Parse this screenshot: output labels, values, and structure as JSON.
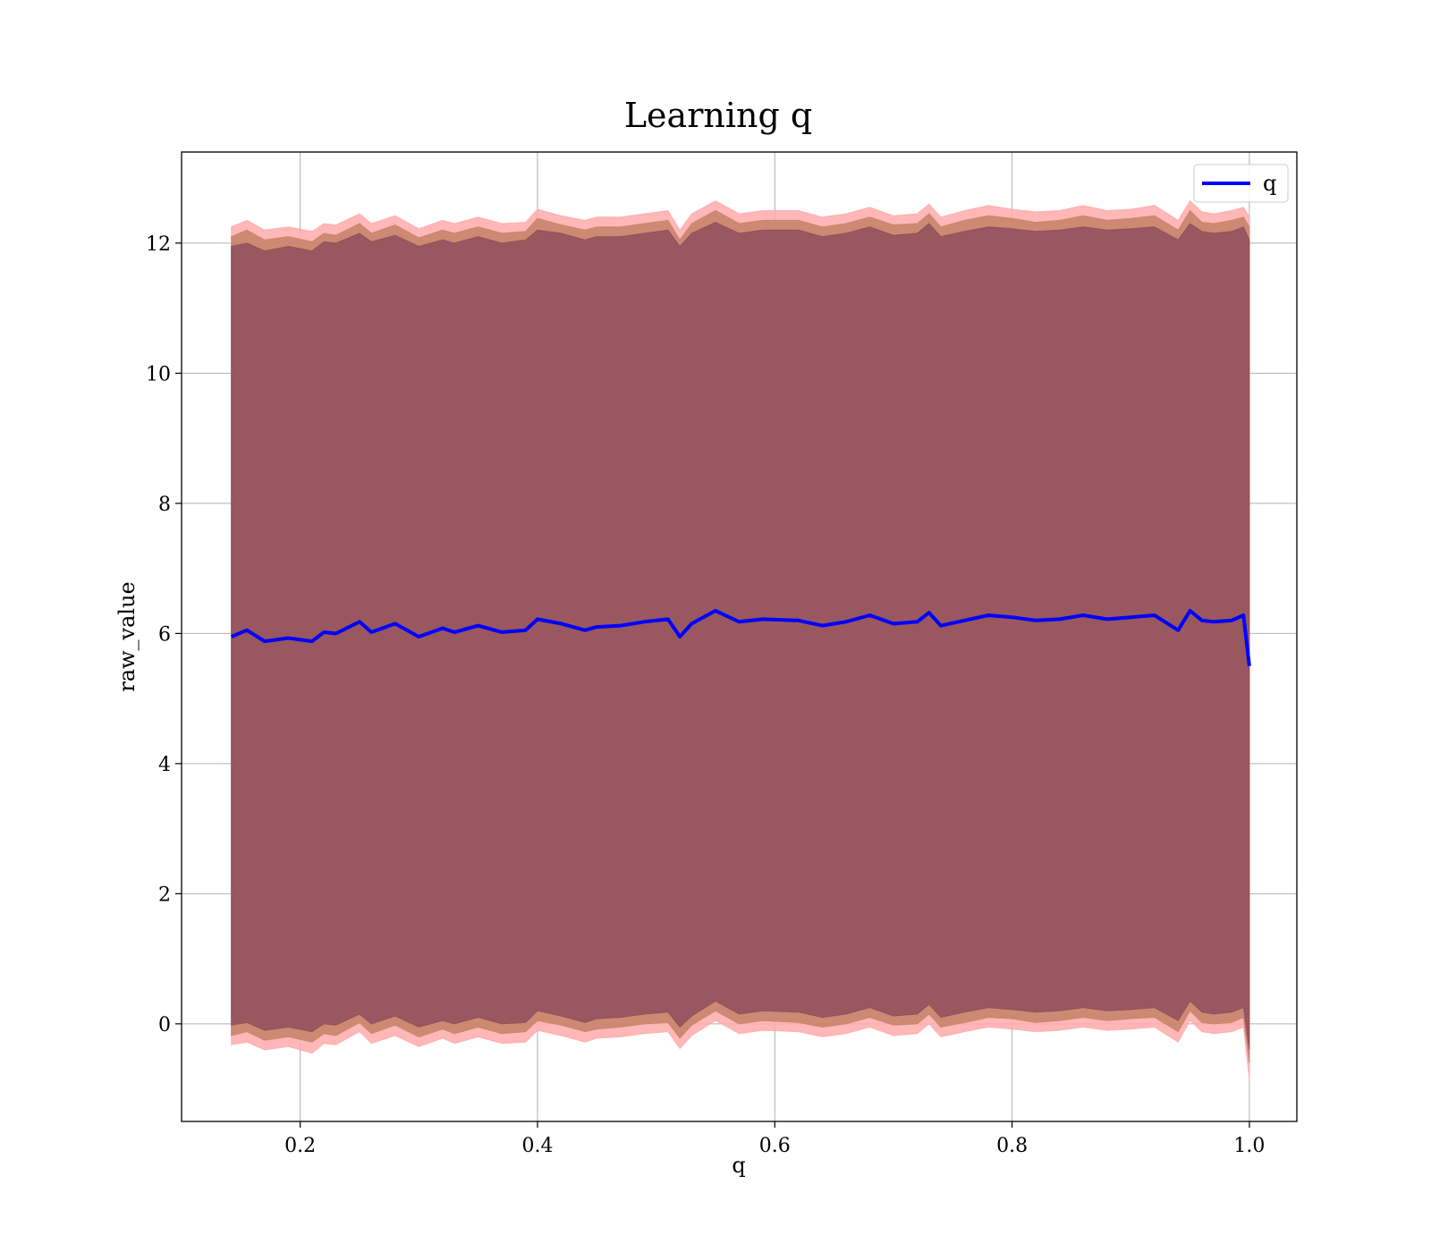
{
  "chart_data": {
    "type": "line",
    "title": "Learning q",
    "xlabel": "q",
    "ylabel": "raw_value",
    "xlim": [
      0.1,
      1.04
    ],
    "ylim": [
      -1.5,
      13.4
    ],
    "grid": true,
    "x_ticks": [
      0.2,
      0.4,
      0.6,
      0.8,
      1.0
    ],
    "x_tick_labels": [
      "0.2",
      "0.4",
      "0.6",
      "0.8",
      "1.0"
    ],
    "y_ticks": [
      0,
      2,
      4,
      6,
      8,
      10,
      12
    ],
    "y_tick_labels": [
      "0",
      "2",
      "4",
      "6",
      "8",
      "10",
      "12"
    ],
    "legend": {
      "entries": [
        "q"
      ],
      "placement": "top-right"
    },
    "colors": {
      "line": "#0000ff",
      "inner_band": "#8b4a5a",
      "middle_band": "#c9846b",
      "outer_band": "#ffaaaa"
    },
    "series": [
      {
        "name": "q",
        "x": [
          0.142,
          0.155,
          0.17,
          0.19,
          0.21,
          0.22,
          0.23,
          0.25,
          0.26,
          0.28,
          0.3,
          0.32,
          0.33,
          0.35,
          0.37,
          0.39,
          0.4,
          0.42,
          0.44,
          0.45,
          0.47,
          0.49,
          0.51,
          0.52,
          0.53,
          0.55,
          0.57,
          0.59,
          0.62,
          0.64,
          0.66,
          0.68,
          0.7,
          0.72,
          0.73,
          0.74,
          0.76,
          0.78,
          0.8,
          0.82,
          0.84,
          0.86,
          0.88,
          0.9,
          0.92,
          0.94,
          0.95,
          0.96,
          0.97,
          0.985,
          0.995,
          1.0
        ],
        "y": [
          5.95,
          6.05,
          5.88,
          5.93,
          5.88,
          6.02,
          6.0,
          6.18,
          6.02,
          6.15,
          5.95,
          6.08,
          6.02,
          6.12,
          6.02,
          6.05,
          6.22,
          6.15,
          6.05,
          6.1,
          6.12,
          6.18,
          6.22,
          5.95,
          6.15,
          6.35,
          6.18,
          6.22,
          6.2,
          6.12,
          6.18,
          6.28,
          6.15,
          6.18,
          6.32,
          6.12,
          6.2,
          6.28,
          6.25,
          6.2,
          6.22,
          6.28,
          6.22,
          6.25,
          6.28,
          6.05,
          6.35,
          6.2,
          6.18,
          6.2,
          6.28,
          5.5
        ],
        "inner_upper": [
          11.95,
          12.0,
          11.88,
          11.95,
          11.88,
          12.02,
          12.0,
          12.15,
          12.02,
          12.12,
          11.95,
          12.05,
          12.0,
          12.1,
          12.0,
          12.05,
          12.2,
          12.15,
          12.05,
          12.1,
          12.1,
          12.15,
          12.2,
          11.95,
          12.15,
          12.32,
          12.15,
          12.2,
          12.2,
          12.1,
          12.15,
          12.25,
          12.12,
          12.15,
          12.3,
          12.1,
          12.18,
          12.25,
          12.22,
          12.18,
          12.2,
          12.25,
          12.2,
          12.22,
          12.25,
          12.05,
          12.3,
          12.18,
          12.15,
          12.18,
          12.25,
          12.05
        ],
        "inner_lower": [
          -0.02,
          0.02,
          -0.1,
          -0.05,
          -0.12,
          0.0,
          -0.02,
          0.15,
          0.0,
          0.12,
          -0.05,
          0.05,
          0.0,
          0.1,
          0.0,
          0.02,
          0.2,
          0.12,
          0.02,
          0.08,
          0.1,
          0.15,
          0.18,
          -0.05,
          0.12,
          0.35,
          0.15,
          0.2,
          0.18,
          0.1,
          0.15,
          0.25,
          0.12,
          0.15,
          0.3,
          0.1,
          0.18,
          0.25,
          0.22,
          0.18,
          0.2,
          0.25,
          0.2,
          0.22,
          0.25,
          0.05,
          0.35,
          0.18,
          0.15,
          0.18,
          0.25,
          -0.4
        ],
        "middle_upper": [
          12.1,
          12.2,
          12.05,
          12.1,
          12.02,
          12.15,
          12.12,
          12.3,
          12.15,
          12.28,
          12.08,
          12.2,
          12.15,
          12.25,
          12.15,
          12.18,
          12.38,
          12.28,
          12.2,
          12.25,
          12.25,
          12.3,
          12.35,
          12.05,
          12.3,
          12.5,
          12.3,
          12.35,
          12.35,
          12.25,
          12.3,
          12.4,
          12.28,
          12.3,
          12.45,
          12.25,
          12.35,
          12.42,
          12.38,
          12.32,
          12.35,
          12.42,
          12.35,
          12.38,
          12.42,
          12.2,
          12.5,
          12.32,
          12.3,
          12.35,
          12.4,
          12.25
        ],
        "middle_lower": [
          -0.18,
          -0.12,
          -0.25,
          -0.2,
          -0.28,
          -0.15,
          -0.18,
          0.02,
          -0.15,
          -0.02,
          -0.2,
          -0.08,
          -0.15,
          -0.05,
          -0.15,
          -0.12,
          0.05,
          -0.02,
          -0.12,
          -0.08,
          -0.05,
          0.0,
          0.02,
          -0.22,
          -0.02,
          0.2,
          0.0,
          0.05,
          0.02,
          -0.05,
          0.0,
          0.1,
          -0.02,
          0.0,
          0.15,
          -0.05,
          0.02,
          0.1,
          0.08,
          0.02,
          0.05,
          0.1,
          0.05,
          0.08,
          0.1,
          -0.12,
          0.2,
          0.02,
          0.0,
          0.02,
          0.1,
          -0.6
        ],
        "outer_upper": [
          12.25,
          12.35,
          12.2,
          12.25,
          12.18,
          12.3,
          12.28,
          12.45,
          12.3,
          12.42,
          12.22,
          12.35,
          12.3,
          12.4,
          12.3,
          12.32,
          12.52,
          12.42,
          12.35,
          12.4,
          12.4,
          12.45,
          12.5,
          12.2,
          12.45,
          12.65,
          12.45,
          12.5,
          12.5,
          12.4,
          12.45,
          12.55,
          12.42,
          12.45,
          12.6,
          12.4,
          12.5,
          12.58,
          12.52,
          12.48,
          12.5,
          12.58,
          12.5,
          12.52,
          12.58,
          12.35,
          12.65,
          12.48,
          12.45,
          12.5,
          12.55,
          12.4
        ],
        "outer_lower": [
          -0.32,
          -0.28,
          -0.4,
          -0.35,
          -0.45,
          -0.3,
          -0.32,
          -0.12,
          -0.3,
          -0.18,
          -0.35,
          -0.22,
          -0.3,
          -0.2,
          -0.3,
          -0.28,
          -0.1,
          -0.18,
          -0.28,
          -0.22,
          -0.2,
          -0.15,
          -0.12,
          -0.38,
          -0.18,
          0.05,
          -0.15,
          -0.1,
          -0.12,
          -0.2,
          -0.15,
          -0.05,
          -0.18,
          -0.15,
          0.0,
          -0.2,
          -0.12,
          -0.05,
          -0.08,
          -0.12,
          -0.1,
          -0.05,
          -0.1,
          -0.08,
          -0.05,
          -0.28,
          0.05,
          -0.12,
          -0.15,
          -0.12,
          -0.05,
          -0.85
        ]
      }
    ]
  }
}
